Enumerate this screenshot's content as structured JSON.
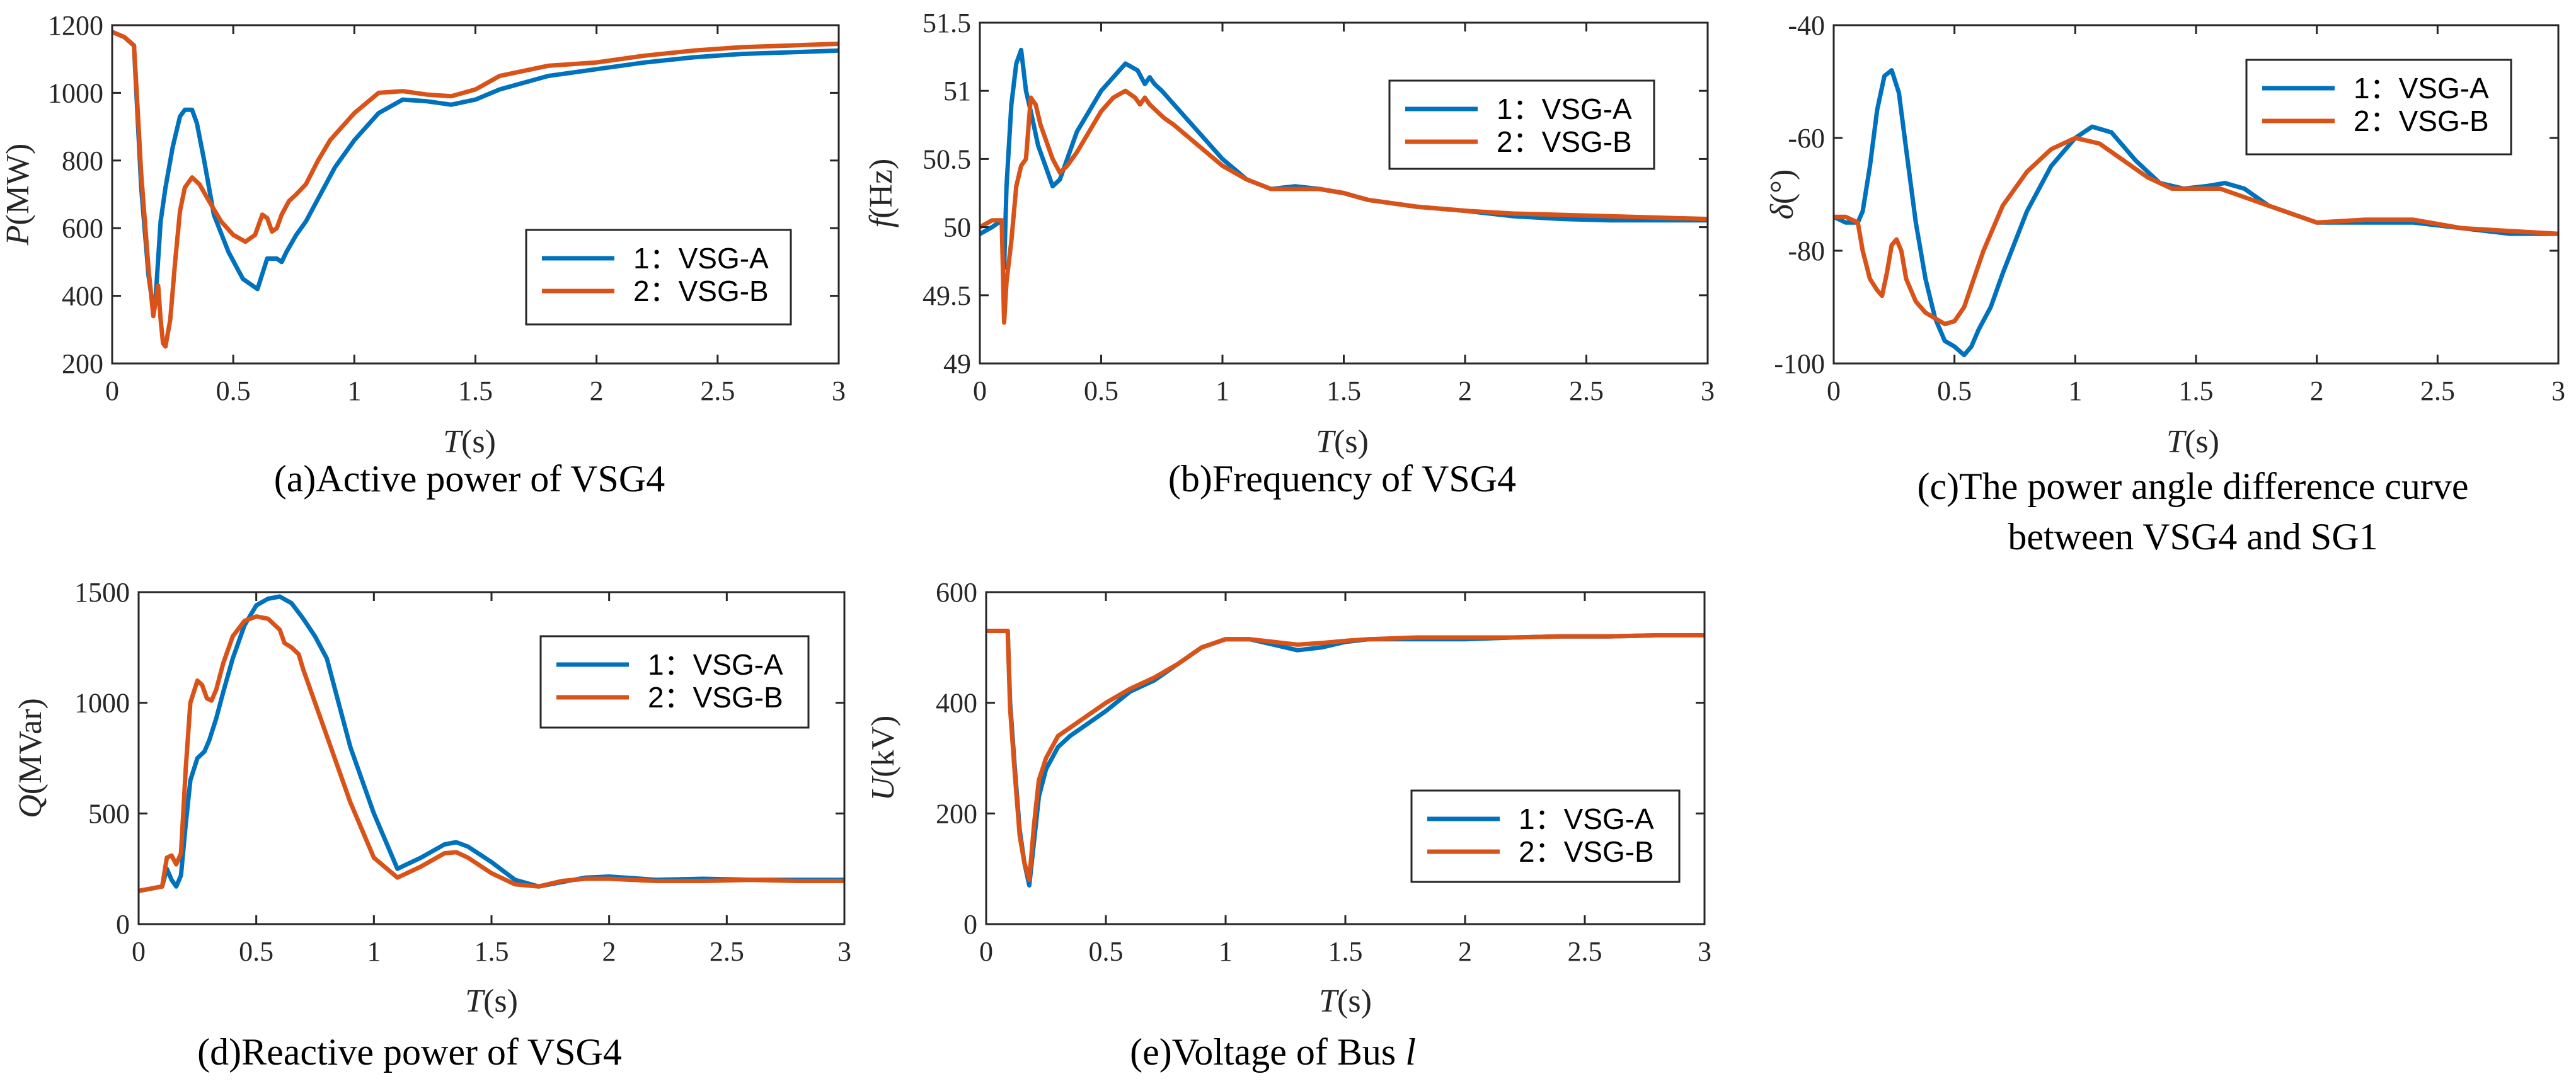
{
  "colors": {
    "series_a": "#0072BD",
    "series_b": "#D95319",
    "axis": "#262626"
  },
  "chart_data": [
    {
      "id": "a",
      "type": "line",
      "caption": "(a)Active power of VSG4",
      "ylabel_var": "P",
      "ylabel_unit": "(MW)",
      "xlabel_var": "T",
      "xlabel_unit": "(s)",
      "xlim": [
        0,
        3
      ],
      "ylim": [
        200,
        1200
      ],
      "xticks": [
        0,
        0.5,
        1,
        1.5,
        2,
        2.5,
        3
      ],
      "yticks": [
        200,
        400,
        600,
        800,
        1000,
        1200
      ],
      "legend_position": "bottom-right",
      "series": [
        {
          "name": "1：VSG-A",
          "x": [
            0,
            0.05,
            0.09,
            0.1,
            0.12,
            0.15,
            0.17,
            0.18,
            0.2,
            0.22,
            0.25,
            0.28,
            0.3,
            0.33,
            0.35,
            0.38,
            0.42,
            0.48,
            0.54,
            0.6,
            0.64,
            0.68,
            0.7,
            0.72,
            0.76,
            0.8,
            0.86,
            0.92,
            1.0,
            1.1,
            1.2,
            1.3,
            1.4,
            1.5,
            1.6,
            1.8,
            2.0,
            2.2,
            2.4,
            2.6,
            2.8,
            3.0
          ],
          "values": [
            1180,
            1165,
            1140,
            1000,
            720,
            460,
            360,
            400,
            620,
            720,
            840,
            930,
            950,
            950,
            910,
            800,
            640,
            530,
            450,
            420,
            510,
            510,
            500,
            530,
            580,
            620,
            700,
            780,
            860,
            940,
            980,
            975,
            965,
            980,
            1010,
            1050,
            1070,
            1090,
            1105,
            1115,
            1120,
            1125
          ]
        },
        {
          "name": "2：VSG-B",
          "x": [
            0,
            0.05,
            0.09,
            0.1,
            0.12,
            0.15,
            0.17,
            0.19,
            0.2,
            0.21,
            0.22,
            0.24,
            0.26,
            0.28,
            0.3,
            0.33,
            0.36,
            0.4,
            0.45,
            0.5,
            0.55,
            0.59,
            0.62,
            0.64,
            0.66,
            0.68,
            0.7,
            0.73,
            0.76,
            0.8,
            0.85,
            0.9,
            1.0,
            1.1,
            1.2,
            1.3,
            1.4,
            1.5,
            1.6,
            1.8,
            2.0,
            2.2,
            2.4,
            2.6,
            2.8,
            3.0
          ],
          "values": [
            1180,
            1165,
            1140,
            1020,
            760,
            480,
            340,
            430,
            330,
            260,
            250,
            330,
            500,
            650,
            720,
            750,
            730,
            680,
            620,
            580,
            560,
            580,
            640,
            630,
            590,
            600,
            640,
            680,
            700,
            730,
            800,
            860,
            940,
            1000,
            1005,
            995,
            990,
            1010,
            1050,
            1080,
            1090,
            1110,
            1125,
            1135,
            1140,
            1145
          ]
        }
      ]
    },
    {
      "id": "b",
      "type": "line",
      "caption": "(b)Frequency of VSG4",
      "ylabel_var": "f",
      "ylabel_unit": "(Hz)",
      "xlabel_var": "T",
      "xlabel_unit": "(s)",
      "xlim": [
        0,
        3
      ],
      "ylim": [
        49,
        51.5
      ],
      "xticks": [
        0,
        0.5,
        1,
        1.5,
        2,
        2.5,
        3
      ],
      "yticks": [
        49,
        49.5,
        50,
        50.5,
        51,
        51.5
      ],
      "legend_position": "top-right",
      "series": [
        {
          "name": "1：VSG-A",
          "x": [
            0,
            0.05,
            0.09,
            0.1,
            0.11,
            0.13,
            0.15,
            0.17,
            0.19,
            0.21,
            0.24,
            0.27,
            0.3,
            0.33,
            0.36,
            0.4,
            0.45,
            0.5,
            0.55,
            0.6,
            0.65,
            0.68,
            0.7,
            0.72,
            0.75,
            0.8,
            0.9,
            1.0,
            1.1,
            1.2,
            1.3,
            1.4,
            1.5,
            1.6,
            1.8,
            2.0,
            2.2,
            2.4,
            2.6,
            2.8,
            3.0
          ],
          "values": [
            49.95,
            50.0,
            50.05,
            49.7,
            50.3,
            50.9,
            51.2,
            51.3,
            51.0,
            50.85,
            50.6,
            50.45,
            50.3,
            50.35,
            50.5,
            50.7,
            50.85,
            51.0,
            51.1,
            51.2,
            51.15,
            51.05,
            51.1,
            51.05,
            51.0,
            50.9,
            50.7,
            50.5,
            50.35,
            50.28,
            50.3,
            50.28,
            50.25,
            50.2,
            50.15,
            50.12,
            50.08,
            50.06,
            50.05,
            50.05,
            50.05
          ]
        },
        {
          "name": "2：VSG-B",
          "x": [
            0,
            0.05,
            0.09,
            0.1,
            0.11,
            0.13,
            0.15,
            0.17,
            0.19,
            0.21,
            0.23,
            0.25,
            0.27,
            0.3,
            0.33,
            0.36,
            0.4,
            0.45,
            0.5,
            0.55,
            0.6,
            0.64,
            0.66,
            0.68,
            0.7,
            0.73,
            0.76,
            0.8,
            0.9,
            1.0,
            1.1,
            1.2,
            1.3,
            1.4,
            1.5,
            1.6,
            1.8,
            2.0,
            2.2,
            2.4,
            2.6,
            2.8,
            3.0
          ],
          "values": [
            50.0,
            50.05,
            50.05,
            49.3,
            49.6,
            49.9,
            50.3,
            50.45,
            50.5,
            50.95,
            50.9,
            50.75,
            50.65,
            50.5,
            50.4,
            50.45,
            50.55,
            50.7,
            50.85,
            50.95,
            51.0,
            50.95,
            50.9,
            50.95,
            50.9,
            50.85,
            50.8,
            50.75,
            50.6,
            50.45,
            50.35,
            50.28,
            50.28,
            50.28,
            50.25,
            50.2,
            50.15,
            50.12,
            50.1,
            50.09,
            50.08,
            50.07,
            50.06
          ]
        }
      ]
    },
    {
      "id": "c",
      "type": "line",
      "caption": "(c)The power angle difference curve",
      "caption2": "between VSG4 and SG1",
      "ylabel_var": "δ",
      "ylabel_unit": "(°)",
      "xlabel_var": "T",
      "xlabel_unit": "(s)",
      "xlim": [
        0,
        3
      ],
      "ylim": [
        -100,
        -40
      ],
      "xticks": [
        0,
        0.5,
        1,
        1.5,
        2,
        2.5,
        3
      ],
      "yticks": [
        -100,
        -80,
        -60,
        -40
      ],
      "legend_position": "top-right",
      "series": [
        {
          "name": "1：VSG-A",
          "x": [
            0,
            0.05,
            0.1,
            0.12,
            0.15,
            0.18,
            0.21,
            0.24,
            0.27,
            0.3,
            0.34,
            0.38,
            0.42,
            0.46,
            0.5,
            0.54,
            0.57,
            0.6,
            0.65,
            0.7,
            0.8,
            0.9,
            1.0,
            1.07,
            1.15,
            1.25,
            1.35,
            1.45,
            1.55,
            1.62,
            1.7,
            1.8,
            2.0,
            2.2,
            2.4,
            2.6,
            2.8,
            3.0
          ],
          "values": [
            -74,
            -75,
            -75,
            -73,
            -65,
            -55,
            -49,
            -48,
            -52,
            -62,
            -75,
            -85,
            -92,
            -96,
            -97,
            -98.5,
            -97,
            -94,
            -90,
            -84,
            -73,
            -65,
            -60,
            -58,
            -59,
            -64,
            -68,
            -69,
            -68.5,
            -68,
            -69,
            -72,
            -75,
            -75,
            -75,
            -76,
            -77,
            -77
          ]
        },
        {
          "name": "2：VSG-B",
          "x": [
            0,
            0.05,
            0.1,
            0.12,
            0.15,
            0.18,
            0.2,
            0.22,
            0.24,
            0.26,
            0.28,
            0.3,
            0.34,
            0.38,
            0.42,
            0.46,
            0.5,
            0.54,
            0.58,
            0.62,
            0.66,
            0.7,
            0.8,
            0.9,
            1.0,
            1.1,
            1.2,
            1.3,
            1.4,
            1.5,
            1.6,
            1.7,
            1.8,
            2.0,
            2.2,
            2.4,
            2.6,
            2.8,
            3.0
          ],
          "values": [
            -74,
            -74,
            -75,
            -80,
            -85,
            -87,
            -88,
            -84,
            -79,
            -78,
            -80,
            -85,
            -89,
            -91,
            -92,
            -93,
            -92.5,
            -90,
            -85,
            -80,
            -76,
            -72,
            -66,
            -62,
            -60,
            -61,
            -64,
            -67,
            -69,
            -69,
            -69,
            -70.5,
            -72,
            -75,
            -74.5,
            -74.5,
            -76,
            -76.5,
            -77
          ]
        }
      ]
    },
    {
      "id": "d",
      "type": "line",
      "caption": "(d)Reactive power of VSG4",
      "ylabel_var": "Q",
      "ylabel_unit": "(MVar)",
      "xlabel_var": "T",
      "xlabel_unit": "(s)",
      "xlim": [
        0,
        3
      ],
      "ylim": [
        0,
        1500
      ],
      "xticks": [
        0,
        0.5,
        1,
        1.5,
        2,
        2.5,
        3
      ],
      "yticks": [
        0,
        500,
        1000,
        1500
      ],
      "legend_position": "top-right",
      "series": [
        {
          "name": "1：VSG-A",
          "x": [
            0,
            0.05,
            0.1,
            0.12,
            0.14,
            0.16,
            0.18,
            0.2,
            0.22,
            0.25,
            0.28,
            0.3,
            0.33,
            0.36,
            0.4,
            0.45,
            0.5,
            0.55,
            0.6,
            0.65,
            0.7,
            0.75,
            0.8,
            0.85,
            0.9,
            1.0,
            1.1,
            1.2,
            1.3,
            1.35,
            1.4,
            1.5,
            1.6,
            1.7,
            1.8,
            1.9,
            2.0,
            2.2,
            2.4,
            2.6,
            2.8,
            3.0
          ],
          "values": [
            150,
            160,
            170,
            250,
            200,
            170,
            220,
            450,
            650,
            750,
            780,
            830,
            930,
            1050,
            1200,
            1350,
            1440,
            1470,
            1480,
            1450,
            1380,
            1300,
            1200,
            1000,
            800,
            500,
            250,
            300,
            360,
            370,
            350,
            280,
            200,
            170,
            190,
            210,
            215,
            200,
            205,
            200,
            200,
            200
          ]
        },
        {
          "name": "2：VSG-B",
          "x": [
            0,
            0.05,
            0.1,
            0.12,
            0.14,
            0.16,
            0.18,
            0.2,
            0.22,
            0.25,
            0.27,
            0.29,
            0.31,
            0.33,
            0.36,
            0.4,
            0.45,
            0.5,
            0.55,
            0.6,
            0.62,
            0.65,
            0.68,
            0.7,
            0.75,
            0.8,
            0.85,
            0.9,
            1.0,
            1.1,
            1.2,
            1.3,
            1.35,
            1.4,
            1.5,
            1.6,
            1.7,
            1.8,
            1.9,
            2.0,
            2.2,
            2.4,
            2.6,
            2.8,
            3.0
          ],
          "values": [
            150,
            160,
            170,
            300,
            310,
            270,
            320,
            700,
            1000,
            1100,
            1080,
            1020,
            1010,
            1060,
            1180,
            1300,
            1370,
            1390,
            1380,
            1330,
            1270,
            1250,
            1220,
            1150,
            1000,
            850,
            700,
            550,
            300,
            210,
            260,
            320,
            325,
            300,
            230,
            180,
            170,
            195,
            205,
            205,
            195,
            195,
            200,
            195,
            195
          ]
        }
      ]
    },
    {
      "id": "e",
      "type": "line",
      "caption": "(e)Voltage of Bus ",
      "caption_italic": "l",
      "ylabel_var": "U",
      "ylabel_unit": "(kV)",
      "xlabel_var": "T",
      "xlabel_unit": "(s)",
      "xlim": [
        0,
        3
      ],
      "ylim": [
        0,
        600
      ],
      "xticks": [
        0,
        0.5,
        1,
        1.5,
        2,
        2.5,
        3
      ],
      "yticks": [
        0,
        200,
        400,
        600
      ],
      "legend_position": "bottom-right",
      "series": [
        {
          "name": "1：VSG-A",
          "x": [
            0,
            0.05,
            0.09,
            0.1,
            0.12,
            0.14,
            0.16,
            0.18,
            0.2,
            0.22,
            0.25,
            0.3,
            0.35,
            0.4,
            0.5,
            0.6,
            0.7,
            0.8,
            0.9,
            1.0,
            1.1,
            1.2,
            1.3,
            1.4,
            1.5,
            1.6,
            1.8,
            2.0,
            2.2,
            2.4,
            2.6,
            2.8,
            3.0
          ],
          "values": [
            530,
            530,
            530,
            400,
            280,
            170,
            110,
            70,
            150,
            230,
            280,
            320,
            340,
            355,
            385,
            420,
            440,
            470,
            500,
            515,
            515,
            505,
            495,
            500,
            510,
            515,
            515,
            515,
            518,
            520,
            520,
            522,
            522
          ]
        },
        {
          "name": "2：VSG-B",
          "x": [
            0,
            0.05,
            0.09,
            0.1,
            0.12,
            0.14,
            0.16,
            0.18,
            0.2,
            0.22,
            0.25,
            0.3,
            0.35,
            0.4,
            0.5,
            0.6,
            0.7,
            0.8,
            0.9,
            1.0,
            1.1,
            1.2,
            1.3,
            1.4,
            1.5,
            1.6,
            1.8,
            2.0,
            2.2,
            2.4,
            2.6,
            2.8,
            3.0
          ],
          "values": [
            530,
            530,
            530,
            390,
            270,
            160,
            110,
            80,
            180,
            260,
            300,
            340,
            355,
            370,
            400,
            425,
            445,
            470,
            500,
            515,
            515,
            510,
            505,
            508,
            512,
            515,
            518,
            518,
            518,
            520,
            520,
            522,
            522
          ]
        }
      ]
    }
  ]
}
